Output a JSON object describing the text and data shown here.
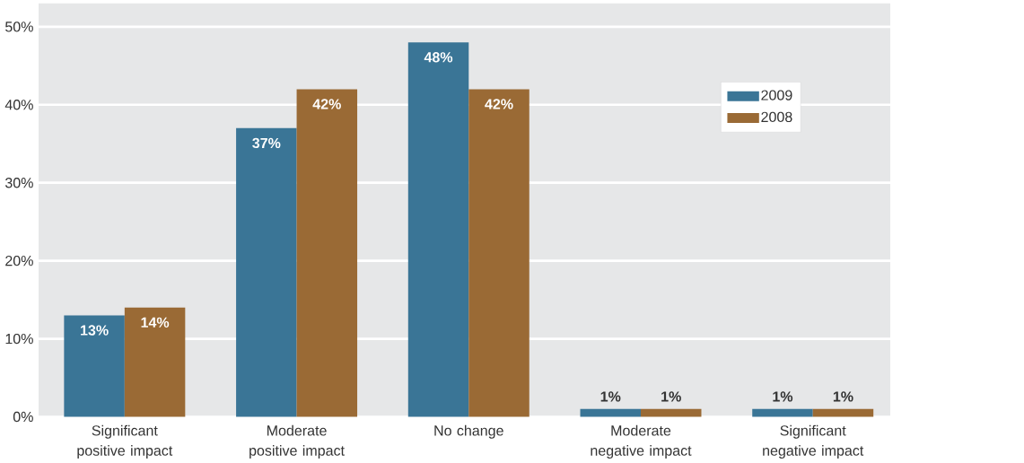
{
  "chart_data": {
    "type": "bar",
    "categories": [
      "Significant positive impact",
      "Moderate positive impact",
      "No change",
      "Moderate negative impact",
      "Significant negative impact"
    ],
    "series": [
      {
        "name": "2009",
        "color": "#3a7596",
        "values": [
          13,
          37,
          48,
          1,
          1
        ],
        "value_labels": [
          "13%",
          "37%",
          "48%",
          "1%",
          "1%"
        ]
      },
      {
        "name": "2008",
        "color": "#9a6a35",
        "values": [
          14,
          42,
          42,
          1,
          1
        ],
        "value_labels": [
          "14%",
          "42%",
          "42%",
          "1%",
          "1%"
        ]
      }
    ],
    "ylim": [
      0,
      53
    ],
    "yticks": [
      {
        "value": 0,
        "label": "0%"
      },
      {
        "value": 10,
        "label": "10%"
      },
      {
        "value": 20,
        "label": "20%"
      },
      {
        "value": 30,
        "label": "30%"
      },
      {
        "value": 40,
        "label": "40%"
      },
      {
        "value": 50,
        "label": "50%"
      }
    ],
    "grid": "y",
    "legend": "top right"
  }
}
